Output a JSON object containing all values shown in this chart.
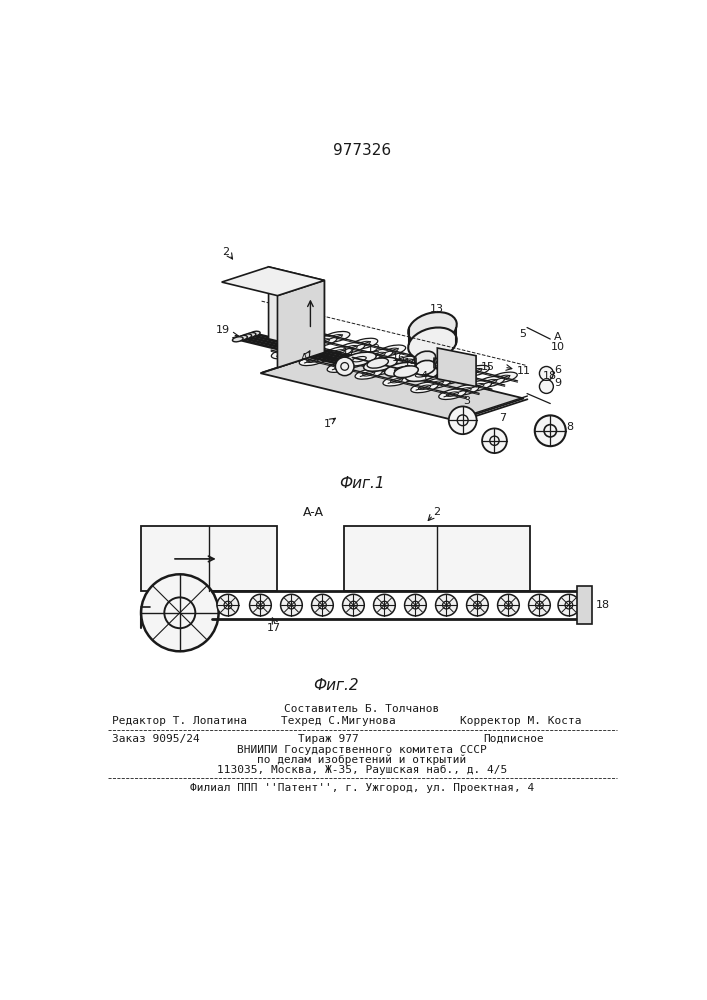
{
  "patent_number": "977326",
  "fig1_label": "Фиг.1",
  "fig2_label": "Фиг.2",
  "section_label": "A-A",
  "footer_sestavitel": "Составитель Б. Толчанов",
  "footer_redaktor": "Редактор Т. Лопатина",
  "footer_tehred": "Техред С.Мигунова",
  "footer_korrektor": "Корректор М. Коста",
  "footer_zakaz": "Заказ 9095/24",
  "footer_tirazh": "Тираж 977",
  "footer_podpisnoe": "Подписное",
  "footer_vniipи": "ВНИИПИ Государственного комитета СССР",
  "footer_po_delam": "по делам изобретений и открытий",
  "footer_address": "113035, Москва, Ж-35, Раушская наб., д. 4/5",
  "footer_filial": "Филиал ППП ''Патент'', г. Ужгород, ул. Проектная, 4",
  "bg_color": "#ffffff",
  "line_color": "#1a1a1a"
}
